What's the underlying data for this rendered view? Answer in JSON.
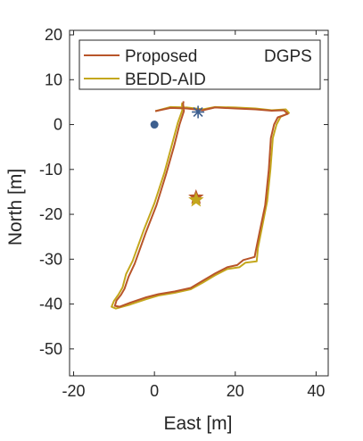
{
  "chart_data": {
    "type": "line",
    "xlabel": "East [m]",
    "ylabel": "North [m]",
    "xlim": [
      -21,
      43
    ],
    "ylim": [
      -56,
      21
    ],
    "xticks": [
      -20,
      0,
      20,
      40
    ],
    "yticks": [
      20,
      10,
      0,
      -10,
      -20,
      -30,
      -40,
      -50
    ],
    "grid": false,
    "legend_placement": "top",
    "colors": {
      "proposed": "#b8552a",
      "bedd": "#c4a71c",
      "dgps": "#3d5f8f",
      "start": "#3d5f8f",
      "end_proposed": "#b8552a",
      "end_bedd": "#c4a71c",
      "axis": "#262626"
    },
    "legend": [
      {
        "key": "proposed",
        "label": "Proposed",
        "marker": "line"
      },
      {
        "key": "dgps",
        "label": "DGPS",
        "marker": "asterisk"
      },
      {
        "key": "bedd",
        "label": "BEDD-AID",
        "marker": "line"
      }
    ],
    "series": [
      {
        "name": "Proposed",
        "key": "proposed",
        "points": [
          [
            0.2,
            3
          ],
          [
            4,
            3.7
          ],
          [
            8,
            3.6
          ],
          [
            12,
            3.2
          ],
          [
            15,
            3.8
          ],
          [
            20,
            3.6
          ],
          [
            25,
            3.4
          ],
          [
            29,
            3.1
          ],
          [
            32,
            3.2
          ],
          [
            33,
            2.4
          ],
          [
            30.5,
            1.6
          ],
          [
            29.6,
            0
          ],
          [
            28.8,
            -3
          ],
          [
            28.3,
            -10
          ],
          [
            27.4,
            -18
          ],
          [
            26,
            -24
          ],
          [
            25.1,
            -28
          ],
          [
            24.8,
            -29.5
          ],
          [
            22,
            -30.2
          ],
          [
            20.5,
            -31.3
          ],
          [
            18,
            -31.8
          ],
          [
            15,
            -33.2
          ],
          [
            12,
            -34.8
          ],
          [
            9,
            -36.4
          ],
          [
            5,
            -37.2
          ],
          [
            1,
            -37.8
          ],
          [
            -2,
            -38.5
          ],
          [
            -6,
            -39.7
          ],
          [
            -8.6,
            -40.6
          ],
          [
            -9.8,
            -40.4
          ],
          [
            -9.4,
            -39.2
          ],
          [
            -8.3,
            -38
          ],
          [
            -7.4,
            -36.6
          ],
          [
            -6.4,
            -33.9
          ],
          [
            -4.9,
            -31
          ],
          [
            -2.1,
            -24
          ],
          [
            0.5,
            -18
          ],
          [
            2.9,
            -11
          ],
          [
            4.8,
            -5
          ],
          [
            6.2,
            0
          ],
          [
            7.3,
            3
          ],
          [
            7.1,
            4.6
          ],
          [
            7.2,
            5.2
          ]
        ]
      },
      {
        "name": "BEDD-AID",
        "key": "bedd",
        "points": [
          [
            0.2,
            3
          ],
          [
            4,
            3.9
          ],
          [
            8,
            3.8
          ],
          [
            12,
            3.4
          ],
          [
            15,
            3.9
          ],
          [
            20,
            3.8
          ],
          [
            25,
            3.6
          ],
          [
            29,
            3.2
          ],
          [
            32.5,
            3.4
          ],
          [
            33.3,
            2.6
          ],
          [
            31.2,
            1.7
          ],
          [
            30.2,
            0
          ],
          [
            29.3,
            -3
          ],
          [
            28.7,
            -10
          ],
          [
            27.9,
            -17
          ],
          [
            26.6,
            -23
          ],
          [
            25.6,
            -27.5
          ],
          [
            25.3,
            -30.5
          ],
          [
            22.5,
            -30.8
          ],
          [
            21,
            -31.8
          ],
          [
            18,
            -32.2
          ],
          [
            15,
            -33.6
          ],
          [
            12,
            -35.2
          ],
          [
            9,
            -36.7
          ],
          [
            5,
            -37.5
          ],
          [
            1,
            -38.1
          ],
          [
            -2,
            -38.9
          ],
          [
            -6,
            -40.1
          ],
          [
            -9.6,
            -41
          ],
          [
            -10.6,
            -40.6
          ],
          [
            -10,
            -39.3
          ],
          [
            -8.9,
            -37.9
          ],
          [
            -7.9,
            -36.3
          ],
          [
            -7,
            -33.3
          ],
          [
            -5.4,
            -30.4
          ],
          [
            -2.6,
            -23.4
          ],
          [
            0,
            -17.5
          ],
          [
            2.5,
            -10.6
          ],
          [
            4.3,
            -4.6
          ],
          [
            5.8,
            0.4
          ],
          [
            6.9,
            3.2
          ],
          [
            6.8,
            4.4
          ],
          [
            6.9,
            4.9
          ]
        ]
      }
    ],
    "dgps_points": [
      [
        10.8,
        2.8
      ]
    ],
    "start_point": [
      0,
      0
    ],
    "end_points": [
      {
        "key": "end_proposed",
        "point": [
          10.3,
          -16.2
        ]
      },
      {
        "key": "end_bedd",
        "point": [
          10.3,
          -16.8
        ]
      }
    ]
  }
}
